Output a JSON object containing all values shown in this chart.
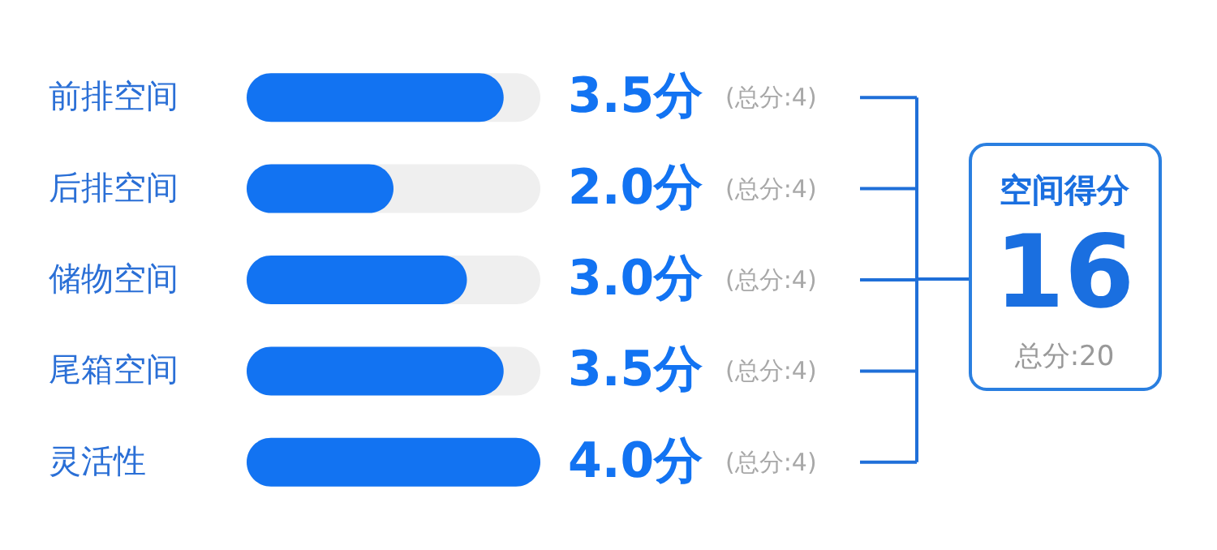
{
  "chart_data": {
    "type": "bar",
    "orientation": "horizontal",
    "categories": [
      "前排空间",
      "后排空间",
      "储物空间",
      "尾箱空间",
      "灵活性"
    ],
    "values": [
      3.5,
      2.0,
      3.0,
      3.5,
      4.0
    ],
    "value_labels": [
      "3.5分",
      "2.0分",
      "3.0分",
      "3.5分",
      "4.0分"
    ],
    "color": "#1273f2",
    "xlim": [
      0,
      4
    ],
    "tick_labels": "y",
    "annotations": [
      "(总分:4)",
      "(总分:4)",
      "(总分:4)",
      "(总分:4)",
      "(总分:4)",
      "空间得分",
      "16",
      "总分:20"
    ]
  }
}
